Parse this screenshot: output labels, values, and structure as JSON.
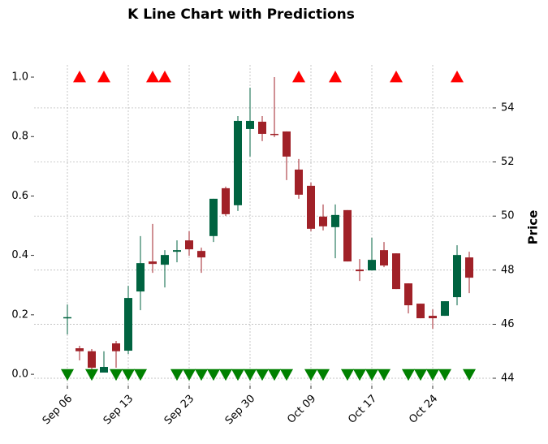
{
  "chart_data": {
    "type": "candlestick",
    "title": "K Line Chart with Predictions",
    "y2label": "Price",
    "categories": [
      "Sep 06",
      null,
      null,
      null,
      null,
      "Sep 13",
      null,
      null,
      null,
      null,
      "Sep 23",
      null,
      null,
      null,
      null,
      "Sep 30",
      null,
      null,
      null,
      null,
      "Oct 09",
      null,
      null,
      null,
      null,
      "Oct 17",
      null,
      null,
      null,
      null,
      "Oct 24",
      null,
      null,
      null
    ],
    "open": [
      46.25,
      45.11,
      45.0,
      44.21,
      45.29,
      45.02,
      47.21,
      48.32,
      48.2,
      48.68,
      49.1,
      48.71,
      49.26,
      51.03,
      50.4,
      53.22,
      53.49,
      53.04,
      53.13,
      51.72,
      51.12,
      49.98,
      49.59,
      50.22,
      48.02,
      47.99,
      48.74,
      48.62,
      47.51,
      46.76,
      46.31,
      46.31,
      47.0,
      48.47
    ],
    "high": [
      46.73,
      45.2,
      45.08,
      45.0,
      45.38,
      47.42,
      49.26,
      49.71,
      48.74,
      49.1,
      49.44,
      48.83,
      50.64,
      51.09,
      53.7,
      54.75,
      53.7,
      55.14,
      53.13,
      52.11,
      51.24,
      50.43,
      50.43,
      50.22,
      48.41,
      49.2,
      49.04,
      48.62,
      47.51,
      46.76,
      46.55,
      46.85,
      48.92,
      48.68
    ],
    "low": [
      45.62,
      44.66,
      44.33,
      44.21,
      44.39,
      44.9,
      46.52,
      47.9,
      47.36,
      48.29,
      48.53,
      47.9,
      49.04,
      50.0,
      50.19,
      52.2,
      52.77,
      52.92,
      51.33,
      50.64,
      49.44,
      49.47,
      48.44,
      48.32,
      47.6,
      47.99,
      48.11,
      47.3,
      46.4,
      46.22,
      45.83,
      46.31,
      46.7,
      47.15
    ],
    "close": [
      46.26,
      45.0,
      44.39,
      44.42,
      45.0,
      46.97,
      48.26,
      48.23,
      48.56,
      48.74,
      48.77,
      48.47,
      50.64,
      50.07,
      53.52,
      53.52,
      53.04,
      53.0,
      52.2,
      50.79,
      49.53,
      49.62,
      50.04,
      48.32,
      47.96,
      48.38,
      48.17,
      47.3,
      46.7,
      46.22,
      46.22,
      46.85,
      48.56,
      47.72
    ],
    "up_color": "#006340",
    "down_color": "#a02128",
    "predictions": {
      "values": [
        0,
        1,
        0,
        1,
        0,
        0,
        0,
        1,
        1,
        0,
        0,
        0,
        0,
        0,
        0,
        0,
        0,
        0,
        0,
        1,
        0,
        0,
        1,
        0,
        0,
        0,
        0,
        1,
        0,
        0,
        0,
        0,
        1,
        0
      ],
      "up_color": "#ff0000",
      "down_color": "#008000"
    },
    "ylim": [
      -0.038,
      1.041
    ],
    "yticks": [
      {
        "value": 0,
        "label": "0.0"
      },
      0.2,
      0.4,
      0.6,
      0.8,
      {
        "value": 1,
        "label": "1.0"
      }
    ],
    "y2lim": [
      43.73,
      55.59
    ],
    "y2ticks": [
      44,
      46,
      48,
      50,
      52,
      54
    ],
    "grid": true
  }
}
